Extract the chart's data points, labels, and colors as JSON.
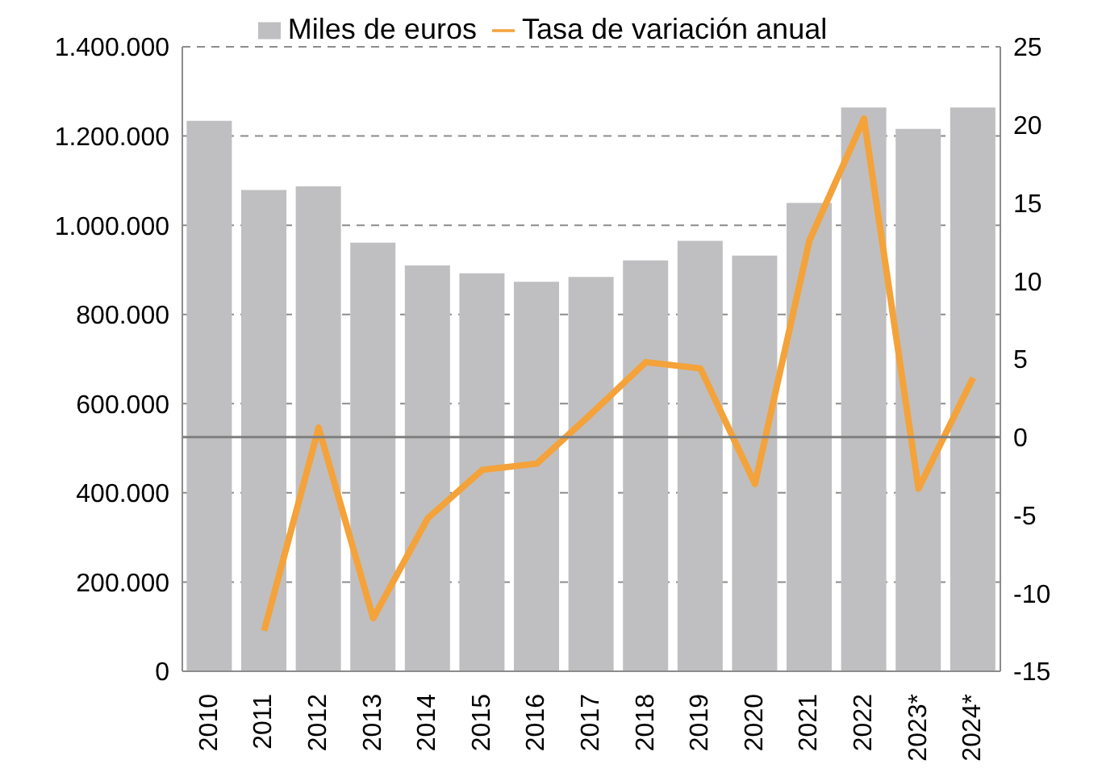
{
  "chart_data": {
    "type": "bar",
    "categories": [
      "2010",
      "2011",
      "2012",
      "2013",
      "2014",
      "2015",
      "2016",
      "2017",
      "2018",
      "2019",
      "2020",
      "2021",
      "2022",
      "2023*",
      "2024*"
    ],
    "series": [
      {
        "name": "Miles de euros",
        "color": "#bfbfc1",
        "values": [
          1234000,
          1079000,
          1087000,
          961000,
          910000,
          892000,
          873000,
          884000,
          921000,
          965000,
          932000,
          1050000,
          1264000,
          1216000,
          1264000
        ]
      },
      {
        "name": "Tasa de variación anual",
        "type": "line",
        "axis": "y2",
        "color": "#f4a23a",
        "values": [
          null,
          -12.4,
          0.6,
          -11.6,
          -5.2,
          -2.1,
          -1.7,
          1.5,
          4.8,
          4.4,
          -3.0,
          12.6,
          20.4,
          -3.3,
          3.8
        ]
      }
    ],
    "ylim": [
      0,
      1400000
    ],
    "yticks": [
      {
        "value": 0,
        "label": "0"
      },
      {
        "value": 200000,
        "label": "200.000"
      },
      {
        "value": 400000,
        "label": "400.000"
      },
      {
        "value": 600000,
        "label": "600.000"
      },
      {
        "value": 800000,
        "label": "800.000"
      },
      {
        "value": 1000000,
        "label": "1.000.000"
      },
      {
        "value": 1200000,
        "label": "1.200.000"
      },
      {
        "value": 1400000,
        "label": "1.400.000"
      }
    ],
    "y2lim": [
      -15,
      25
    ],
    "y2ticks": [
      -15,
      -10,
      -5,
      0,
      5,
      10,
      15,
      20,
      25
    ],
    "ref_lines": [
      {
        "axis": "y2",
        "value": 0,
        "color": "#7f7f7f"
      }
    ],
    "grid": "y",
    "legend": "top",
    "marker": "none",
    "line_style": "solid"
  }
}
